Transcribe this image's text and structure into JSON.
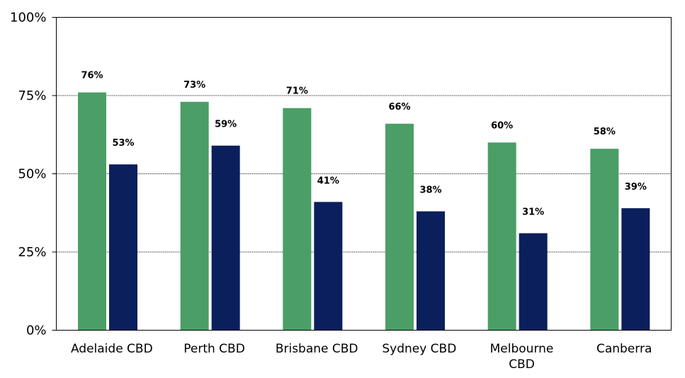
{
  "chart_data": {
    "type": "bar",
    "title": "",
    "xlabel": "",
    "ylabel": "",
    "ylim": [
      0,
      100
    ],
    "yticks": [
      0,
      25,
      50,
      75,
      100
    ],
    "ytick_labels": [
      "0%",
      "25%",
      "50%",
      "75%",
      "100%"
    ],
    "grid": "horizontal dashed",
    "legend": "none",
    "categories": [
      "Adelaide CBD",
      "Perth CBD",
      "Brisbane CBD",
      "Sydney CBD",
      "Melbourne CBD",
      "Canberra"
    ],
    "series": [
      {
        "color": "#4a9e66",
        "values": [
          76,
          73,
          71,
          66,
          60,
          58
        ],
        "labels": [
          "76%",
          "73%",
          "71%",
          "66%",
          "60%",
          "58%"
        ]
      },
      {
        "color": "#0b1f5c",
        "values": [
          53,
          59,
          41,
          38,
          31,
          39
        ],
        "labels": [
          "53%",
          "59%",
          "41%",
          "38%",
          "31%",
          "39%"
        ]
      }
    ]
  }
}
